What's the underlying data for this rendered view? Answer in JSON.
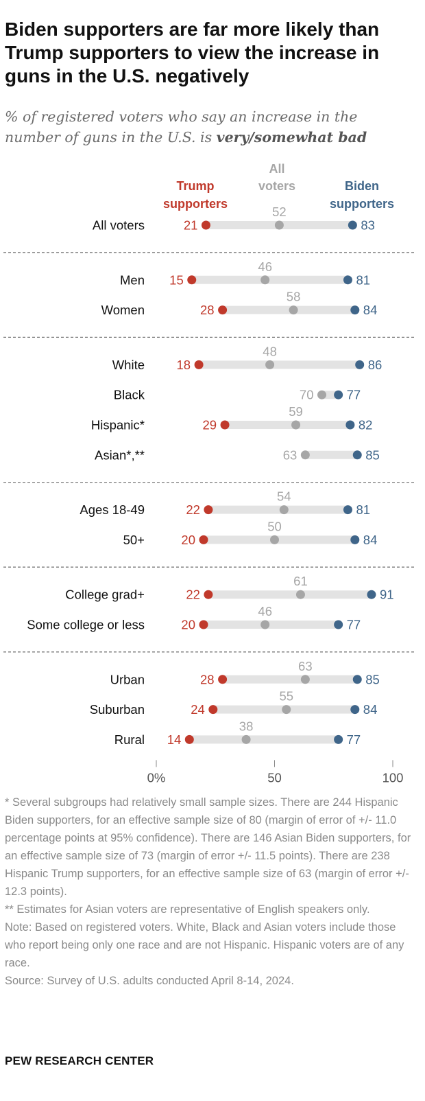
{
  "title": "Biden supporters are far more likely than Trump supporters to view the increase in guns in the U.S. negatively",
  "subtitle": {
    "text": "% of registered voters who say an increase in the number of guns in the U.S. is ",
    "emphasis": "very/somewhat bad"
  },
  "legend": {
    "trump": [
      "Trump",
      "supporters"
    ],
    "all": [
      "All",
      "voters"
    ],
    "biden": [
      "Biden",
      "supporters"
    ]
  },
  "colors": {
    "trump": "#c0392b",
    "all": "#a6a6a6",
    "biden": "#3f6589",
    "bar": "#e3e3e3",
    "divider": "#7a7a7a"
  },
  "chart_data": {
    "type": "dot",
    "series": [
      {
        "name": "Trump supporters",
        "key": "trump"
      },
      {
        "name": "All voters",
        "key": "all"
      },
      {
        "name": "Biden supporters",
        "key": "biden"
      }
    ],
    "groups": [
      {
        "rows": [
          {
            "label": "All voters",
            "trump": 21,
            "all": 52,
            "biden": 83
          }
        ]
      },
      {
        "rows": [
          {
            "label": "Men",
            "trump": 15,
            "all": 46,
            "biden": 81
          },
          {
            "label": "Women",
            "trump": 28,
            "all": 58,
            "biden": 84
          }
        ]
      },
      {
        "rows": [
          {
            "label": "White",
            "trump": 18,
            "all": 48,
            "biden": 86
          },
          {
            "label": "Black",
            "trump": null,
            "all": 70,
            "biden": 77
          },
          {
            "label": "Hispanic*",
            "trump": 29,
            "all": 59,
            "biden": 82
          },
          {
            "label": "Asian*,**",
            "trump": null,
            "all": 63,
            "biden": 85
          }
        ]
      },
      {
        "rows": [
          {
            "label": "Ages 18-49",
            "trump": 22,
            "all": 54,
            "biden": 81
          },
          {
            "label": "50+",
            "trump": 20,
            "all": 50,
            "biden": 84
          }
        ]
      },
      {
        "rows": [
          {
            "label": "College grad+",
            "trump": 22,
            "all": 61,
            "biden": 91
          },
          {
            "label": "Some college or less",
            "trump": 20,
            "all": 46,
            "biden": 77
          }
        ]
      },
      {
        "rows": [
          {
            "label": "Urban",
            "trump": 28,
            "all": 63,
            "biden": 85
          },
          {
            "label": "Suburban",
            "trump": 24,
            "all": 55,
            "biden": 84
          },
          {
            "label": "Rural",
            "trump": 14,
            "all": 38,
            "biden": 77
          }
        ]
      }
    ],
    "xlim": [
      0,
      100
    ],
    "xticks": [
      0,
      50,
      100
    ],
    "xtick_labels": [
      "0%",
      "50",
      "100"
    ]
  },
  "notes": [
    "* Several subgroups had relatively small sample sizes. There are 244 Hispanic Biden supporters, for an effective sample size of 80 (margin of error of +/- 11.0 percentage points at 95% confidence). There are 146 Asian Biden supporters, for an effective sample size of 73 (margin of error +/- 11.5 points). There are 238 Hispanic Trump supporters, for an effective sample size of 63 (margin of error +/- 12.3 points).",
    "** Estimates for Asian voters are representative of English speakers only.",
    "Note: Based on registered voters. White, Black and Asian voters include those who report being only one race and are not Hispanic. Hispanic voters are of any race.",
    "Source: Survey of U.S. adults conducted April 8-14, 2024."
  ],
  "brand": "PEW RESEARCH CENTER"
}
